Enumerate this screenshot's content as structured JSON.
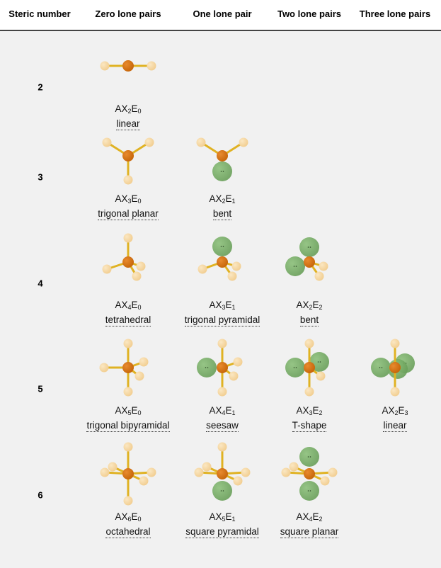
{
  "header": {
    "steric": "Steric number",
    "zero": "Zero lone pairs",
    "one": "One lone pair",
    "two": "Two lone pairs",
    "three": "Three lone pairs"
  },
  "colors": {
    "central_atom": "#c8680c",
    "ligand_atom": "#f2cf93",
    "bond": "#e0b222",
    "lone_pair": "#6aa05a",
    "header_rule": "#444444",
    "grid_bg": "#f1f1f1"
  },
  "rows": [
    {
      "steric": "2",
      "cells": [
        {
          "ax": "2",
          "e": "0",
          "geometry": "linear"
        }
      ]
    },
    {
      "steric": "3",
      "cells": [
        {
          "ax": "3",
          "e": "0",
          "geometry": "trigonal planar"
        },
        {
          "ax": "2",
          "e": "1",
          "geometry": "bent"
        }
      ]
    },
    {
      "steric": "4",
      "cells": [
        {
          "ax": "4",
          "e": "0",
          "geometry": "tetrahedral"
        },
        {
          "ax": "3",
          "e": "1",
          "geometry": "trigonal pyramidal"
        },
        {
          "ax": "2",
          "e": "2",
          "geometry": "bent"
        }
      ]
    },
    {
      "steric": "5",
      "cells": [
        {
          "ax": "5",
          "e": "0",
          "geometry": "trigonal bipyramidal"
        },
        {
          "ax": "4",
          "e": "1",
          "geometry": "seesaw"
        },
        {
          "ax": "3",
          "e": "2",
          "geometry": "T-shape"
        },
        {
          "ax": "2",
          "e": "3",
          "geometry": "linear"
        }
      ]
    },
    {
      "steric": "6",
      "cells": [
        {
          "ax": "6",
          "e": "0",
          "geometry": "octahedral"
        },
        {
          "ax": "5",
          "e": "1",
          "geometry": "square pyramidal"
        },
        {
          "ax": "4",
          "e": "2",
          "geometry": "square planar"
        }
      ]
    }
  ]
}
